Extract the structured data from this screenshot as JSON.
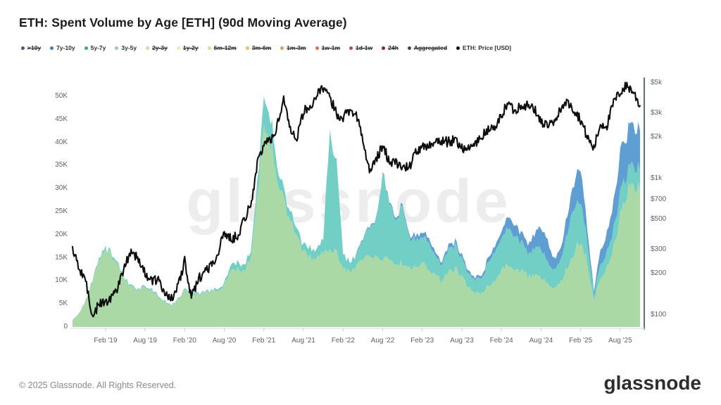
{
  "page": {
    "title": "ETH: Spent Volume by Age [ETH] (90d Moving Average)",
    "watermark": "glassnode",
    "footer_copyright": "© 2025 Glassnode. All Rights Reserved.",
    "footer_logo": "glassnode"
  },
  "legend": {
    "items": [
      {
        "label": ">10y",
        "color": "#52518e",
        "struck": true
      },
      {
        "label": "7y-10y",
        "color": "#3d7dba",
        "struck": false
      },
      {
        "label": "5y-7y",
        "color": "#3aa795",
        "struck": false
      },
      {
        "label": "3y-5y",
        "color": "#8ecf9c",
        "struck": false
      },
      {
        "label": "2y-3y",
        "color": "#c3e3a4",
        "struck": true
      },
      {
        "label": "1y-2y",
        "color": "#eeeaa8",
        "struck": true
      },
      {
        "label": "6m-12m",
        "color": "#f0d98c",
        "struck": true
      },
      {
        "label": "3m-6m",
        "color": "#ecbd68",
        "struck": true
      },
      {
        "label": "1m-3m",
        "color": "#e59a55",
        "struck": true
      },
      {
        "label": "1w-1m",
        "color": "#dd7147",
        "struck": true
      },
      {
        "label": "1d-1w",
        "color": "#c24848",
        "struck": true
      },
      {
        "label": "24h",
        "color": "#8e2043",
        "struck": true
      },
      {
        "label": "Aggregated",
        "color": "#3d4a52",
        "struck": true
      },
      {
        "label": "ETH: Price [USD]",
        "color": "#111111",
        "struck": false
      }
    ]
  },
  "chart_data": {
    "type": "area",
    "stacked": true,
    "title": "ETH: Spent Volume by Age [ETH] (90d Moving Average)",
    "x_start_month": "Sep 2018",
    "x_end_month": "Nov 2025",
    "points": 87,
    "series": [
      {
        "name": "3y-5y",
        "axis": "left",
        "unit": "K ETH",
        "color": "#abd9a5",
        "values": [
          1.5,
          3,
          5.5,
          10,
          14,
          16.5,
          15.5,
          13,
          10,
          8.5,
          8,
          8.5,
          8,
          6.5,
          5.5,
          4.5,
          6,
          8,
          7.5,
          7,
          7.5,
          7.5,
          8,
          9,
          12,
          12.5,
          12,
          15,
          28,
          42,
          40,
          33,
          28,
          23,
          20,
          16,
          15,
          14.5,
          16,
          17,
          16,
          12.5,
          12,
          13,
          14.5,
          15,
          15,
          15,
          14.5,
          13.5,
          14,
          13,
          13,
          13.5,
          13,
          11,
          10,
          12,
          12.5,
          11,
          8.5,
          7.5,
          7.5,
          9,
          10,
          12,
          14,
          13,
          12,
          11,
          11,
          11,
          9.5,
          8.5,
          10,
          13,
          16,
          19,
          14,
          5.5,
          11,
          13,
          17,
          24,
          29,
          31,
          30
        ]
      },
      {
        "name": "5y-7y",
        "axis": "left",
        "unit": "K ETH",
        "color": "#72cfc5",
        "values": [
          0,
          0,
          0.2,
          0.3,
          0.5,
          0.5,
          0.5,
          0.4,
          0.3,
          0.3,
          0.3,
          0.3,
          0.3,
          0.3,
          0.2,
          0.2,
          0.2,
          0.3,
          0.3,
          0.3,
          0.3,
          0.3,
          0.4,
          0.5,
          1.2,
          1.5,
          1.2,
          1.5,
          3,
          6,
          6,
          3,
          2,
          2,
          1.5,
          1.5,
          2,
          2,
          3,
          26,
          20,
          3,
          2,
          2.5,
          4,
          6,
          8,
          18,
          12,
          10,
          12.5,
          6.5,
          6,
          5.5,
          6,
          4,
          3.5,
          5,
          5,
          4,
          3,
          3,
          3.2,
          5,
          6,
          7,
          8,
          7,
          6,
          5,
          5.5,
          6,
          5,
          4,
          5,
          8,
          10,
          8.5,
          5,
          1,
          3,
          3.5,
          4,
          5,
          4.5,
          4.5,
          4
        ]
      },
      {
        "name": "7y-10y",
        "axis": "left",
        "unit": "K ETH",
        "color": "#5f9ed2",
        "values": [
          0,
          0,
          0,
          0,
          0,
          0,
          0,
          0,
          0,
          0,
          0,
          0,
          0,
          0,
          0,
          0,
          0,
          0,
          0,
          0,
          0,
          0,
          0,
          0,
          0,
          0,
          0,
          0,
          0,
          0,
          0,
          0,
          0,
          0,
          0,
          0,
          0,
          0,
          0,
          0,
          0,
          0,
          0,
          0.2,
          0.3,
          0.3,
          0.3,
          0.3,
          0.3,
          0.5,
          0.5,
          0.5,
          1,
          1,
          1,
          0.8,
          0.6,
          0.8,
          0.8,
          0.7,
          0.6,
          0.5,
          0.6,
          1,
          1.2,
          1.5,
          2.5,
          2.5,
          2,
          2,
          3,
          4.5,
          4.5,
          2.5,
          2.5,
          4,
          5.5,
          7.5,
          3,
          1,
          3,
          4,
          6,
          9,
          8.5,
          9,
          8.5
        ]
      },
      {
        "name": "ETH: Price [USD]",
        "axis": "right",
        "type": "line",
        "unit": "USD",
        "color": "#0d0d0d",
        "values": [
          290,
          220,
          180,
          95,
          120,
          125,
          135,
          165,
          240,
          300,
          250,
          200,
          180,
          175,
          150,
          130,
          160,
          250,
          130,
          180,
          210,
          230,
          280,
          400,
          360,
          380,
          500,
          640,
          1250,
          1800,
          1900,
          2400,
          3900,
          2300,
          2000,
          3100,
          3300,
          4100,
          4500,
          3900,
          3000,
          2800,
          3200,
          3000,
          1900,
          1100,
          1400,
          1700,
          1350,
          1300,
          1200,
          1200,
          1550,
          1650,
          1750,
          1900,
          1850,
          1850,
          1900,
          1700,
          1630,
          1800,
          2000,
          2300,
          2300,
          2900,
          3600,
          3100,
          3500,
          3400,
          3200,
          2600,
          2450,
          2500,
          3300,
          3600,
          3200,
          2700,
          2000,
          1650,
          2500,
          2450,
          3600,
          4300,
          4800,
          4300,
          3400
        ]
      }
    ],
    "left_axis": {
      "range_k": [
        0,
        53.3
      ],
      "ticks": [
        {
          "v": 0,
          "label": "0"
        },
        {
          "v": 5,
          "label": "5K"
        },
        {
          "v": 10,
          "label": "10K"
        },
        {
          "v": 15,
          "label": "15K"
        },
        {
          "v": 20,
          "label": "20K"
        },
        {
          "v": 25,
          "label": "25K"
        },
        {
          "v": 30,
          "label": "30K"
        },
        {
          "v": 35,
          "label": "35K"
        },
        {
          "v": 40,
          "label": "40K"
        },
        {
          "v": 45,
          "label": "45K"
        },
        {
          "v": 50,
          "label": "50K"
        }
      ]
    },
    "right_axis": {
      "scale": "log",
      "ticks": [
        {
          "v": 5000,
          "label": "$5k"
        },
        {
          "v": 3000,
          "label": "$3k"
        },
        {
          "v": 2000,
          "label": "$2k"
        },
        {
          "v": 1000,
          "label": "$1k"
        },
        {
          "v": 700,
          "label": "$700"
        },
        {
          "v": 500,
          "label": "$500"
        },
        {
          "v": 300,
          "label": "$300"
        },
        {
          "v": 200,
          "label": "$200"
        },
        {
          "v": 100,
          "label": "$100"
        }
      ]
    },
    "x_ticks": [
      {
        "label": "Feb '19",
        "i": 5
      },
      {
        "label": "Aug '19",
        "i": 11
      },
      {
        "label": "Feb '20",
        "i": 17
      },
      {
        "label": "Aug '20",
        "i": 23
      },
      {
        "label": "Feb '21",
        "i": 29
      },
      {
        "label": "Aug '21",
        "i": 35
      },
      {
        "label": "Feb '22",
        "i": 41
      },
      {
        "label": "Aug '22",
        "i": 47
      },
      {
        "label": "Feb '23",
        "i": 53
      },
      {
        "label": "Aug '23",
        "i": 59
      },
      {
        "label": "Feb '24",
        "i": 65
      },
      {
        "label": "Aug '24",
        "i": 71
      },
      {
        "label": "Feb '25",
        "i": 77
      },
      {
        "label": "Aug '25",
        "i": 83
      }
    ],
    "legend_position": "top",
    "grid": false,
    "axis_line_color": "#55707c",
    "baseline_color": "#e6e6e6"
  }
}
